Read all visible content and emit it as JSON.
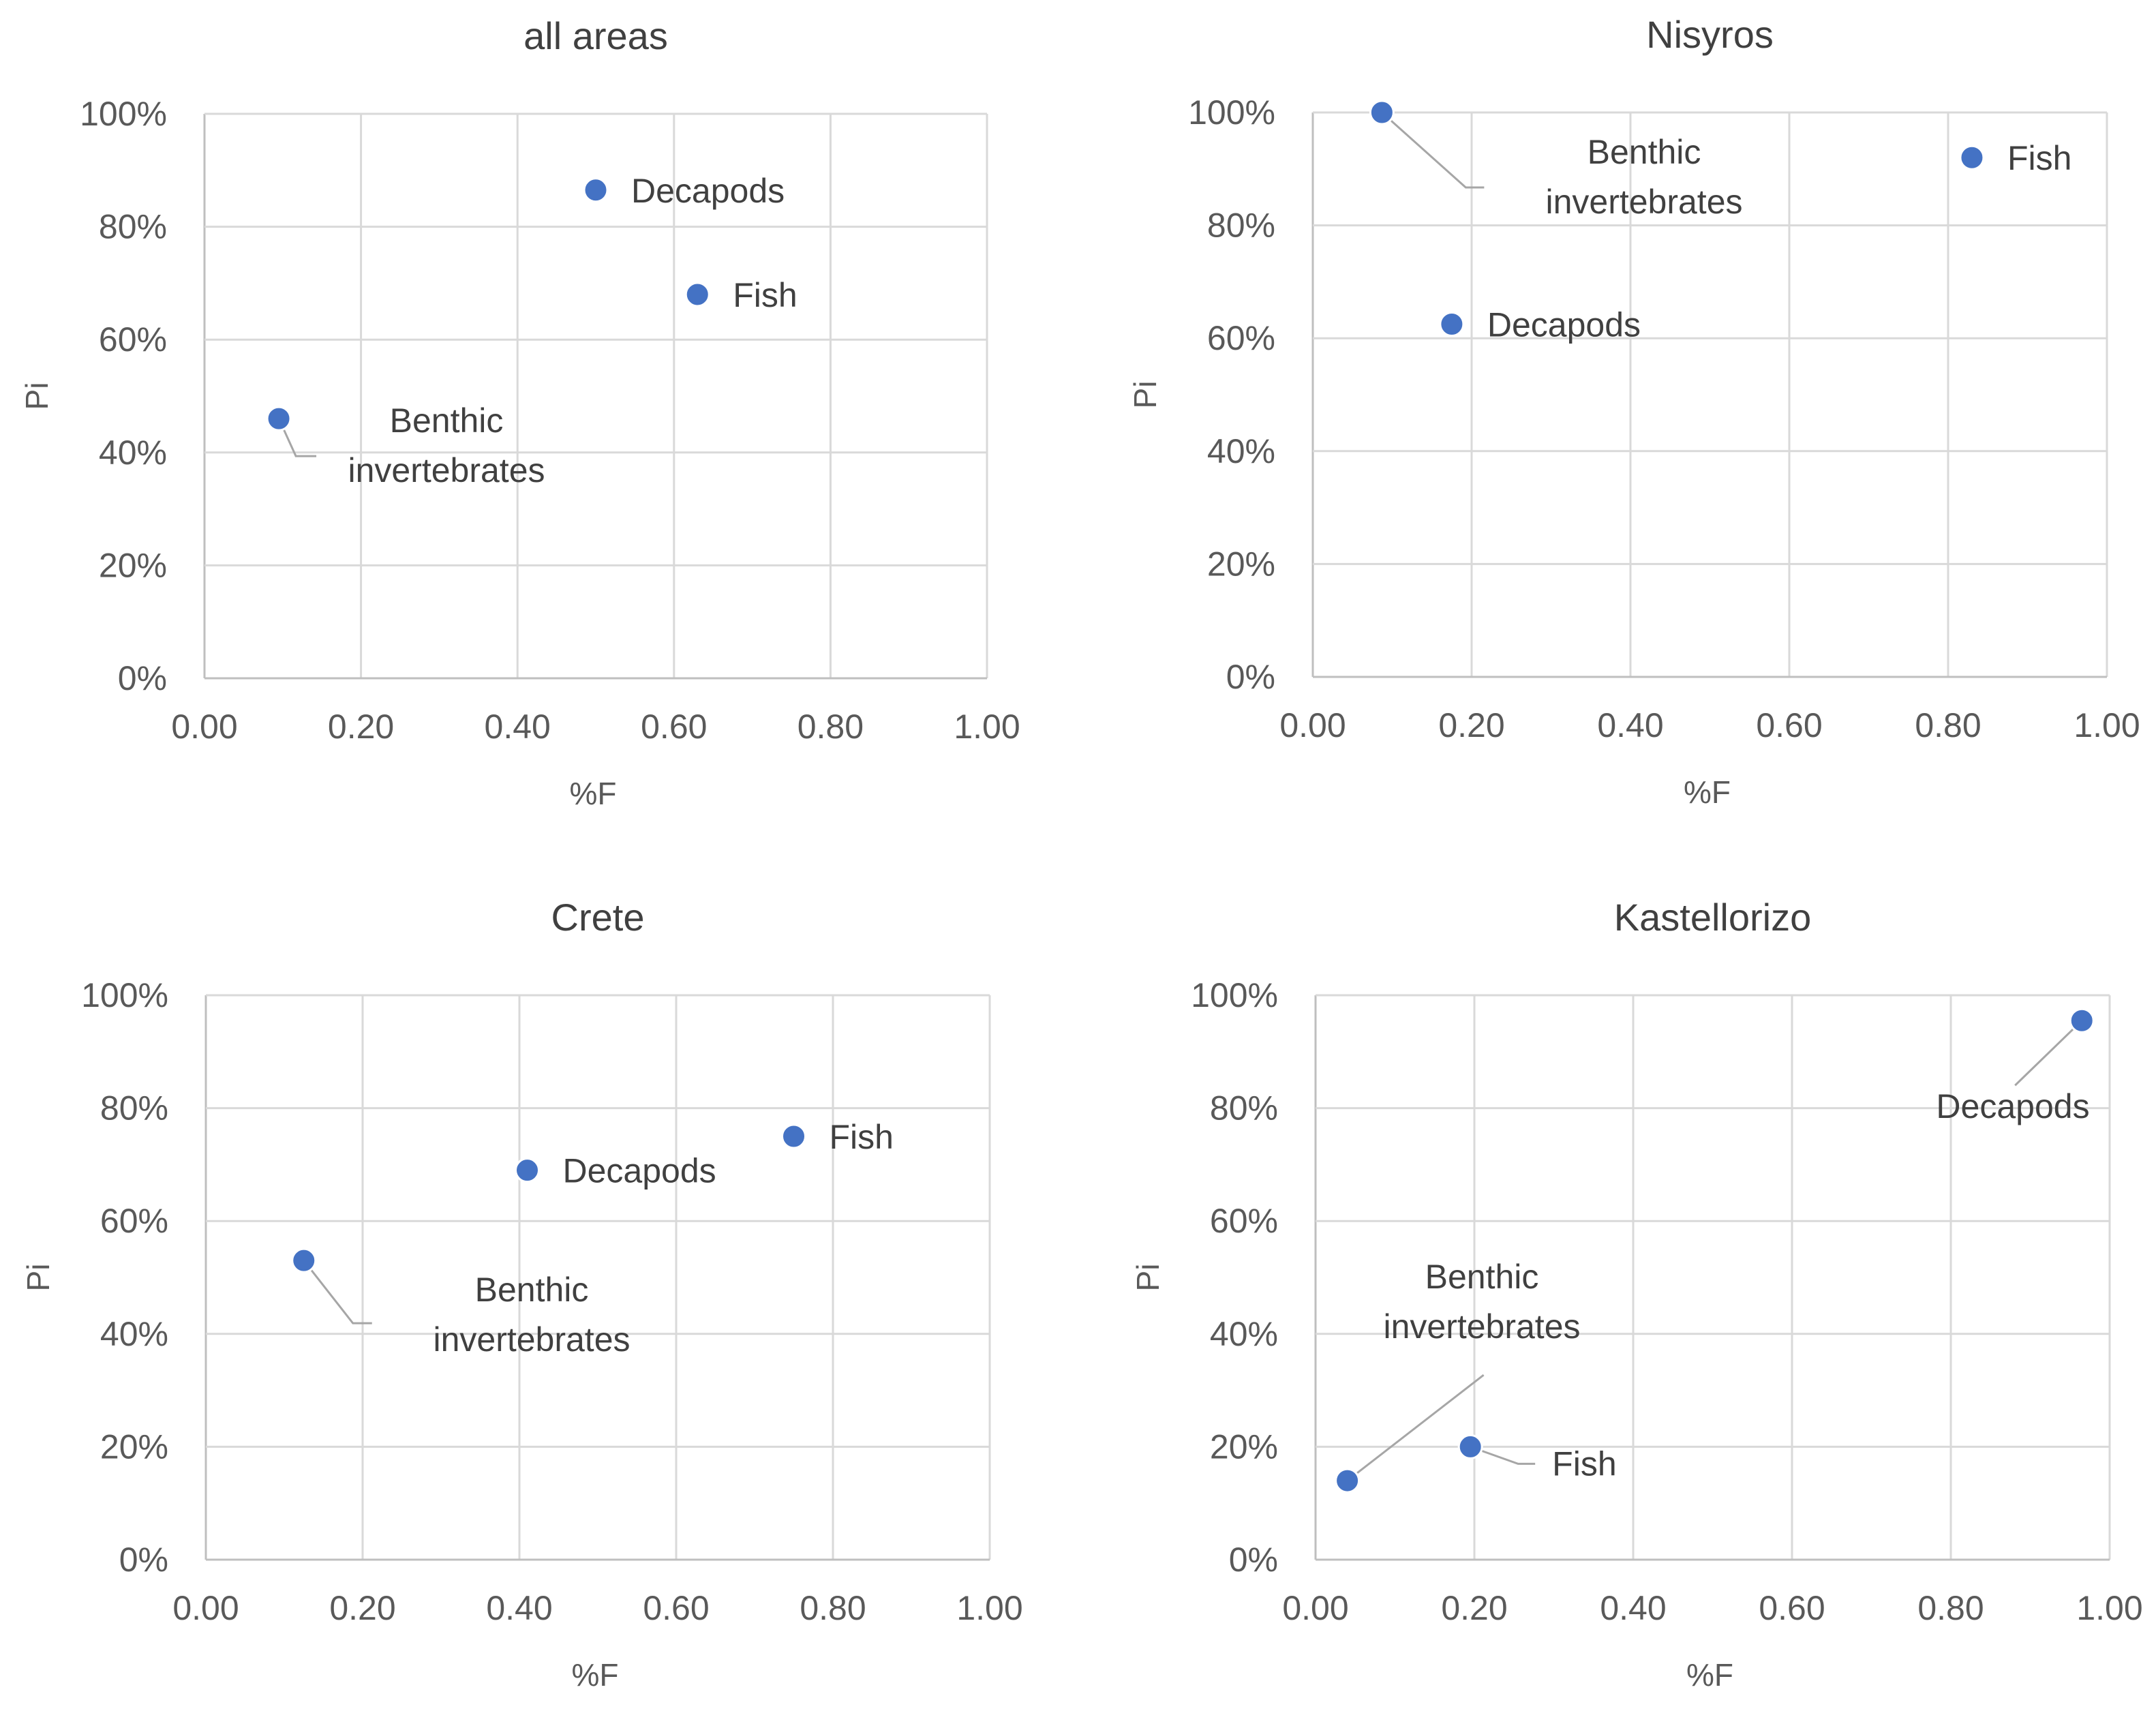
{
  "chart_data": [
    {
      "type": "scatter",
      "title": "all areas",
      "xlabel": "%F",
      "ylabel": "Pi",
      "xlim": [
        0,
        1
      ],
      "ylim": [
        0,
        100
      ],
      "x_ticks": [
        "0.00",
        "0.20",
        "0.40",
        "0.60",
        "0.80",
        "1.00"
      ],
      "y_ticks": [
        "0%",
        "20%",
        "40%",
        "60%",
        "80%",
        "100%"
      ],
      "grid": true,
      "points": [
        {
          "name": "Decapods",
          "x": 0.5,
          "y": 86.5,
          "label": "Decapods"
        },
        {
          "name": "Fish",
          "x": 0.63,
          "y": 68,
          "label": "Fish"
        },
        {
          "name": "Benthic invertebrates",
          "x": 0.095,
          "y": 46,
          "label": [
            "Benthic",
            "invertebrates"
          ]
        }
      ]
    },
    {
      "type": "scatter",
      "title": "Nisyros",
      "xlabel": "%F",
      "ylabel": "Pi",
      "xlim": [
        0,
        1
      ],
      "ylim": [
        0,
        100
      ],
      "x_ticks": [
        "0.00",
        "0.20",
        "0.40",
        "0.60",
        "0.80",
        "1.00"
      ],
      "y_ticks": [
        "0%",
        "20%",
        "40%",
        "60%",
        "80%",
        "100%"
      ],
      "grid": true,
      "points": [
        {
          "name": "Benthic invertebrates",
          "x": 0.087,
          "y": 100,
          "label": [
            "Benthic",
            "invertebrates"
          ]
        },
        {
          "name": "Fish",
          "x": 0.83,
          "y": 92,
          "label": "Fish"
        },
        {
          "name": "Decapods",
          "x": 0.175,
          "y": 62.5,
          "label": "Decapods"
        }
      ]
    },
    {
      "type": "scatter",
      "title": "Crete",
      "xlabel": "%F",
      "ylabel": "Pi",
      "xlim": [
        0,
        1
      ],
      "ylim": [
        0,
        100
      ],
      "x_ticks": [
        "0.00",
        "0.20",
        "0.40",
        "0.60",
        "0.80",
        "1.00"
      ],
      "y_ticks": [
        "0%",
        "20%",
        "40%",
        "60%",
        "80%",
        "100%"
      ],
      "grid": true,
      "points": [
        {
          "name": "Fish",
          "x": 0.75,
          "y": 75,
          "label": "Fish"
        },
        {
          "name": "Decapods",
          "x": 0.41,
          "y": 69,
          "label": "Decapods"
        },
        {
          "name": "Benthic invertebrates",
          "x": 0.125,
          "y": 53,
          "label": [
            "Benthic",
            "invertebrates"
          ]
        }
      ]
    },
    {
      "type": "scatter",
      "title": "Kastellorizo",
      "xlabel": "%F",
      "ylabel": "Pi",
      "xlim": [
        0,
        1
      ],
      "ylim": [
        0,
        100
      ],
      "x_ticks": [
        "0.00",
        "0.20",
        "0.40",
        "0.60",
        "0.80",
        "1.00"
      ],
      "y_ticks": [
        "0%",
        "20%",
        "40%",
        "60%",
        "80%",
        "100%"
      ],
      "grid": true,
      "points": [
        {
          "name": "Decapods",
          "x": 0.965,
          "y": 95.5,
          "label": "Decapods"
        },
        {
          "name": "Fish",
          "x": 0.195,
          "y": 20,
          "label": "Fish"
        },
        {
          "name": "Benthic invertebrates",
          "x": 0.04,
          "y": 14,
          "label": [
            "Benthic",
            "invertebrates"
          ]
        }
      ]
    }
  ],
  "colors": {
    "marker": "#4472c4",
    "grid": "#d9d9d9",
    "text": "#404040",
    "tick_text": "#595959",
    "leader_line": "#a6a6a6"
  }
}
